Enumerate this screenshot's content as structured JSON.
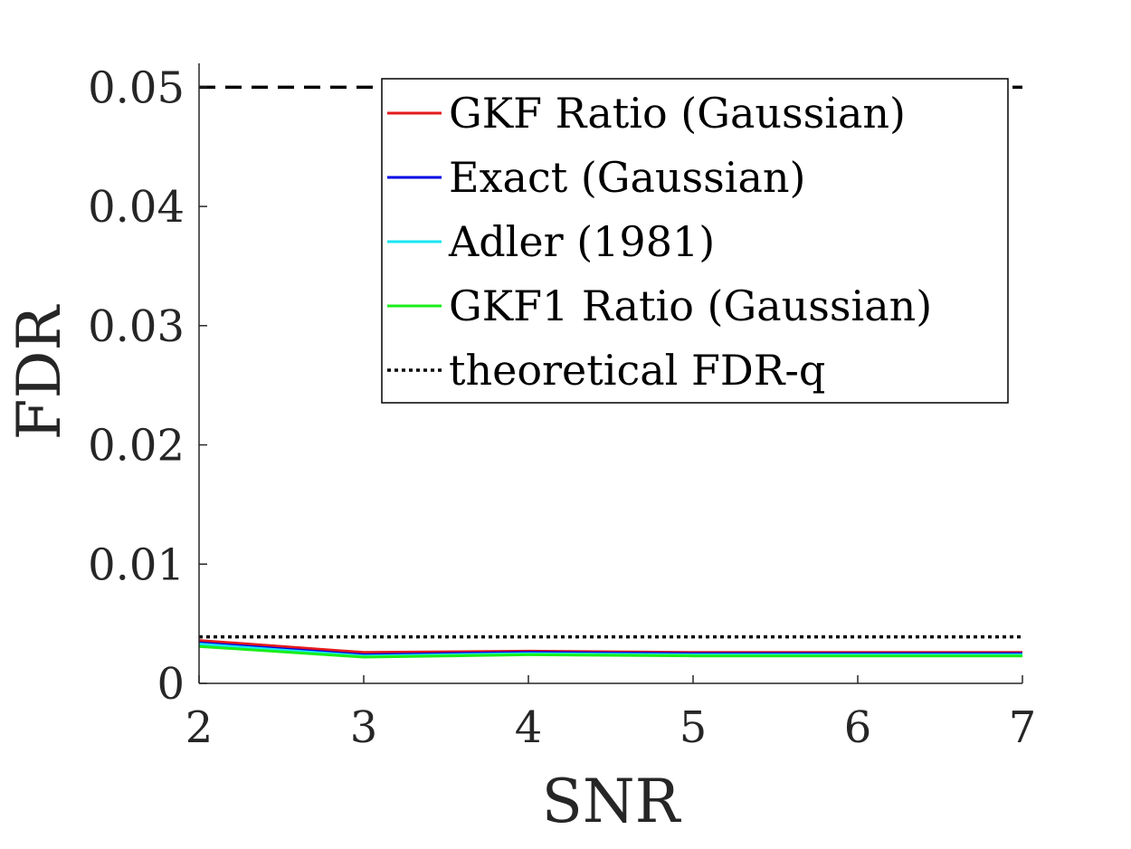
{
  "chart_data": {
    "type": "line",
    "title": "",
    "xlabel": "SNR",
    "ylabel": "FDR",
    "xlim": [
      2,
      7
    ],
    "ylim": [
      0,
      0.052
    ],
    "x": [
      2,
      3,
      4,
      5,
      6,
      7
    ],
    "x_tick_labels": [
      "2",
      "3",
      "4",
      "5",
      "6",
      "7"
    ],
    "y_ticks": [
      0,
      0.01,
      0.02,
      0.03,
      0.04,
      0.05
    ],
    "y_tick_labels": [
      "0",
      "0.01",
      "0.02",
      "0.03",
      "0.04",
      "0.05"
    ],
    "grid": false,
    "legend_position": "top-right",
    "series": [
      {
        "name": "GKF Ratio (Gaussian)",
        "color": "#e41a1c",
        "dash": "solid",
        "values": [
          0.0036,
          0.0026,
          0.0027,
          0.0026,
          0.0026,
          0.0026
        ]
      },
      {
        "name": "Exact (Gaussian)",
        "color": "#0000e6",
        "dash": "solid",
        "values": [
          0.0034,
          0.0024,
          0.0026,
          0.0025,
          0.0025,
          0.0025
        ]
      },
      {
        "name": "Adler (1981)",
        "color": "#19e6f0",
        "dash": "solid",
        "values": [
          0.0033,
          0.0023,
          0.0025,
          0.0024,
          0.0024,
          0.0024
        ]
      },
      {
        "name": "GKF1 Ratio (Gaussian)",
        "color": "#1aee1a",
        "dash": "solid",
        "values": [
          0.0031,
          0.0022,
          0.0024,
          0.0023,
          0.0023,
          0.0023
        ]
      },
      {
        "name": "theoretical FDR-q",
        "color": "#000000",
        "dash": "dotted",
        "values": [
          0.0039,
          0.0039,
          0.0039,
          0.0039,
          0.0039,
          0.0039
        ]
      }
    ],
    "reference_lines": [
      {
        "y": 0.05,
        "color": "#000000",
        "dash": "dashed"
      }
    ]
  }
}
